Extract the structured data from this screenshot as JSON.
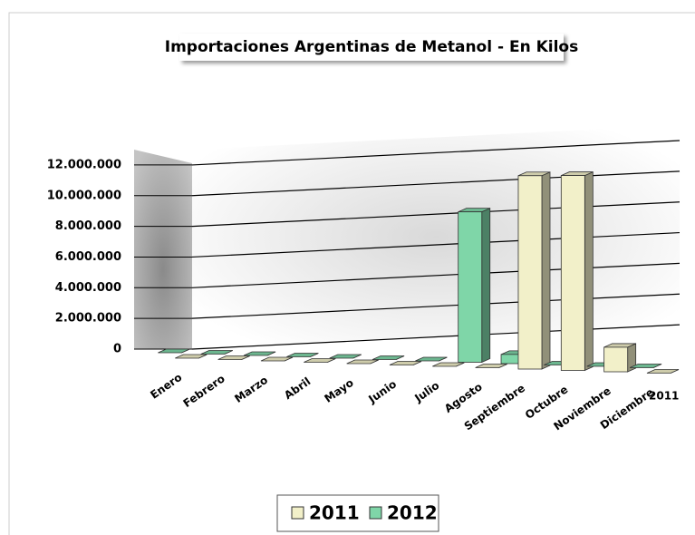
{
  "chart_data": {
    "type": "bar3d",
    "title": "Importaciones Argentinas de Metanol  - En Kilos",
    "categories": [
      "Enero",
      "Febrero",
      "Marzo",
      "Abril",
      "Mayo",
      "Junio",
      "Julio",
      "Agosto",
      "Septiembre",
      "Octubre",
      "Noviembre",
      "Diciembre"
    ],
    "series": [
      {
        "name": "2011",
        "color": "#f2f0c9",
        "values": [
          0,
          0,
          0,
          0,
          0,
          0,
          0,
          0,
          12600000,
          12700000,
          1600000,
          0
        ]
      },
      {
        "name": "2012",
        "color": "#7fd6a8",
        "values": [
          0,
          0,
          0,
          0,
          0,
          0,
          0,
          9800000,
          600000,
          0,
          0,
          0
        ]
      }
    ],
    "depth_label": "2011",
    "ylim": [
      0,
      13000000
    ],
    "yticks": [
      {
        "value": 0,
        "label": "0"
      },
      {
        "value": 2000000,
        "label": "2.000.000"
      },
      {
        "value": 4000000,
        "label": "4.000.000"
      },
      {
        "value": 6000000,
        "label": "6.000.000"
      },
      {
        "value": 8000000,
        "label": "8.000.000"
      },
      {
        "value": 10000000,
        "label": "10.000.000"
      },
      {
        "value": 12000000,
        "label": "12.000.000"
      }
    ],
    "grid": true
  }
}
